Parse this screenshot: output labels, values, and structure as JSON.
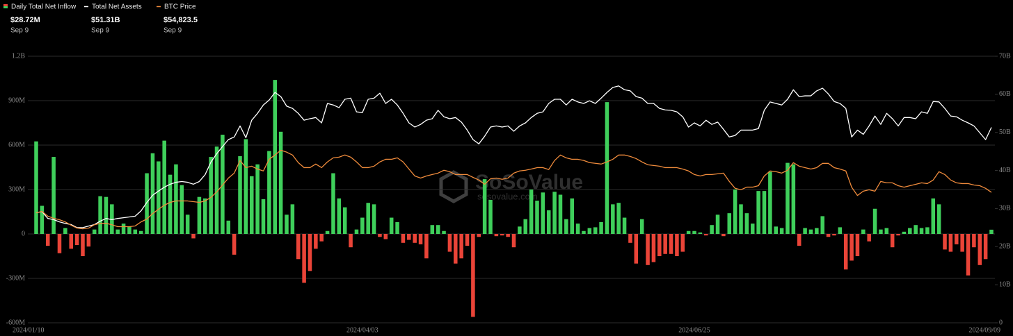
{
  "chart_data": {
    "type": "bar",
    "categories": [
      "2024/01/10",
      null,
      null,
      null,
      null,
      null,
      null,
      null,
      null,
      null,
      null,
      null,
      null,
      null,
      null,
      null,
      null,
      null,
      null,
      null,
      null,
      null,
      null,
      null,
      null,
      null,
      null,
      null,
      null,
      null,
      null,
      null,
      null,
      null,
      null,
      null,
      null,
      null,
      null,
      null,
      null,
      null,
      null,
      null,
      null,
      null,
      null,
      null,
      null,
      null,
      null,
      null,
      null,
      null,
      null,
      null,
      "2024/04/03",
      null,
      null,
      null,
      null,
      null,
      null,
      null,
      null,
      null,
      null,
      null,
      null,
      null,
      null,
      null,
      null,
      null,
      null,
      null,
      null,
      null,
      null,
      null,
      null,
      null,
      null,
      null,
      null,
      null,
      null,
      null,
      null,
      null,
      null,
      null,
      null,
      null,
      null,
      null,
      null,
      null,
      null,
      null,
      null,
      null,
      null,
      null,
      null,
      null,
      null,
      null,
      null,
      null,
      null,
      null,
      null,
      "2024/06/25",
      null,
      null,
      null,
      null,
      null,
      null,
      null,
      null,
      null,
      null,
      null,
      null,
      null,
      null,
      null,
      null,
      null,
      null,
      null,
      null,
      null,
      null,
      null,
      null,
      null,
      null,
      null,
      null,
      null,
      null,
      null,
      null,
      null,
      null,
      null,
      null,
      null,
      null,
      null,
      null,
      null,
      null,
      null,
      null,
      null,
      null,
      null,
      null,
      null,
      null,
      "2024/09/09"
    ],
    "series": [
      {
        "name": "Daily Total Net Inflow",
        "type": "bar",
        "color": "#3fcf5b",
        "negative_color": "#ea4438",
        "latest_label": "$28.72M",
        "latest_date": "Sep 9",
        "values": [
          625,
          190,
          -80,
          520,
          -130,
          40,
          -100,
          -75,
          -150,
          -85,
          30,
          255,
          250,
          200,
          30,
          70,
          50,
          30,
          20,
          410,
          545,
          490,
          630,
          400,
          470,
          330,
          130,
          -30,
          250,
          240,
          520,
          590,
          670,
          90,
          -140,
          525,
          640,
          390,
          470,
          235,
          560,
          1040,
          690,
          130,
          200,
          -170,
          -330,
          -250,
          -100,
          -50,
          20,
          410,
          240,
          180,
          -90,
          30,
          110,
          210,
          200,
          -20,
          -35,
          110,
          80,
          -60,
          -40,
          -60,
          -70,
          -165,
          60,
          60,
          20,
          -120,
          -200,
          -165,
          -80,
          -560,
          -20,
          370,
          230,
          -15,
          -10,
          -20,
          -90,
          50,
          100,
          300,
          225,
          280,
          160,
          285,
          265,
          100,
          240,
          70,
          20,
          40,
          45,
          80,
          890,
          200,
          210,
          110,
          -60,
          -200,
          100,
          -210,
          -190,
          -150,
          -135,
          -135,
          -150,
          -120,
          20,
          20,
          10,
          -10,
          60,
          130,
          -15,
          140,
          300,
          200,
          140,
          70,
          290,
          290,
          420,
          50,
          40,
          480,
          470,
          -80,
          40,
          30,
          40,
          120,
          -20,
          -10,
          45,
          -240,
          -180,
          -150,
          30,
          -50,
          170,
          30,
          40,
          -90,
          -10,
          15,
          40,
          60,
          40,
          45,
          240,
          200,
          -105,
          -120,
          -70,
          -120,
          -280,
          -90,
          -210,
          -170,
          28.72
        ]
      },
      {
        "name": "Total Net Assets",
        "type": "line",
        "axis": "y2",
        "color": "#ffffff",
        "latest_label": "$51.31B",
        "latest_date": "Sep 9",
        "values": [
          28.9,
          29.2,
          27.4,
          27.1,
          26.5,
          26.1,
          25.8,
          25.0,
          25.0,
          25.4,
          25.8,
          26.7,
          27.4,
          27.1,
          27.4,
          27.6,
          27.8,
          28.0,
          29.4,
          31.6,
          33.5,
          34.6,
          35.6,
          36.4,
          36.9,
          37.1,
          36.9,
          36.4,
          37.1,
          38.9,
          42.2,
          44.4,
          46.3,
          48.1,
          48.8,
          51.7,
          48.6,
          53.2,
          55.0,
          57.2,
          58.5,
          60.5,
          59.4,
          56.9,
          56.3,
          55.0,
          53.2,
          53.6,
          53.9,
          52.5,
          57.6,
          57.2,
          56.5,
          58.7,
          59.0,
          55.4,
          55.2,
          58.7,
          59.0,
          60.3,
          57.6,
          58.7,
          57.2,
          55.0,
          52.5,
          51.4,
          52.1,
          53.2,
          53.6,
          55.8,
          54.1,
          53.6,
          53.9,
          52.7,
          50.6,
          48.1,
          47.0,
          49.0,
          51.4,
          51.7,
          51.4,
          51.7,
          50.3,
          51.7,
          52.5,
          53.9,
          55.0,
          55.4,
          57.6,
          58.7,
          58.7,
          57.2,
          58.7,
          58.0,
          57.6,
          58.3,
          57.6,
          59.0,
          60.5,
          61.8,
          62.2,
          61.2,
          60.9,
          59.4,
          59.0,
          57.6,
          57.6,
          56.3,
          55.9,
          55.8,
          55.4,
          54.1,
          51.4,
          52.5,
          51.7,
          53.2,
          52.1,
          52.7,
          50.8,
          48.8,
          49.2,
          50.6,
          50.6,
          50.6,
          51.0,
          55.8,
          58.0,
          57.6,
          57.2,
          58.7,
          61.2,
          59.4,
          59.6,
          59.6,
          60.9,
          61.6,
          60.1,
          58.1,
          57.6,
          56.3,
          48.8,
          50.6,
          49.5,
          51.7,
          54.3,
          52.1,
          55.0,
          53.6,
          51.7,
          53.9,
          53.9,
          53.6,
          55.4,
          55.0,
          58.1,
          58.0,
          56.3,
          54.3,
          54.1,
          53.2,
          52.5,
          51.7,
          49.9,
          48.1,
          51.31
        ]
      },
      {
        "name": "BTC Price",
        "type": "line",
        "axis": "y3",
        "color": "#ef8b3c",
        "latest_label": "$54,823.5",
        "latest_date": "Sep 9",
        "values": [
          46200,
          46800,
          44800,
          43900,
          43300,
          42400,
          41000,
          39800,
          39500,
          39800,
          41200,
          41800,
          41800,
          41200,
          40400,
          40400,
          40400,
          40700,
          42400,
          43600,
          45900,
          47700,
          49400,
          50600,
          51200,
          51200,
          51200,
          50900,
          50600,
          51200,
          52700,
          55000,
          57900,
          60800,
          62900,
          68200,
          65200,
          65800,
          64600,
          63800,
          68700,
          70500,
          72500,
          71700,
          70500,
          67300,
          65200,
          65200,
          66700,
          65200,
          67600,
          69300,
          69600,
          70500,
          69600,
          67600,
          65200,
          65200,
          65800,
          67600,
          68700,
          68700,
          69300,
          67600,
          64600,
          61700,
          60800,
          61700,
          62300,
          62900,
          64100,
          63500,
          62300,
          62300,
          62300,
          61100,
          60000,
          58200,
          60500,
          60800,
          60300,
          60800,
          62900,
          63800,
          64100,
          64600,
          65200,
          65200,
          64400,
          68200,
          70500,
          69300,
          68700,
          68700,
          68200,
          67300,
          67000,
          66700,
          67600,
          68700,
          70500,
          70500,
          69900,
          69000,
          67600,
          66400,
          66100,
          65800,
          65200,
          65200,
          65200,
          64600,
          63800,
          62300,
          61700,
          62300,
          62300,
          62600,
          62900,
          59400,
          56500,
          55900,
          57000,
          57000,
          57600,
          61700,
          63800,
          63500,
          62900,
          64100,
          67300,
          65800,
          65200,
          64600,
          65200,
          67000,
          67000,
          65200,
          64600,
          63800,
          57000,
          53500,
          55300,
          55900,
          55300,
          59400,
          58800,
          58800,
          57600,
          57000,
          57600,
          58200,
          58800,
          58500,
          60000,
          63500,
          62300,
          60000,
          58800,
          58500,
          58500,
          57900,
          57600,
          56500,
          54823.5
        ]
      }
    ],
    "ylim": [
      -600,
      1200
    ],
    "yticks": [
      {
        "value": -600,
        "label": "-600M"
      },
      {
        "value": -300,
        "label": "-300M"
      },
      0,
      {
        "value": 300,
        "label": "300M"
      },
      {
        "value": 600,
        "label": "600M"
      },
      {
        "value": 900,
        "label": "900M"
      },
      {
        "value": 1200,
        "label": "1.2B"
      }
    ],
    "y2lim": [
      0,
      70
    ],
    "y2ticks": [
      {
        "value": 0,
        "label": "0"
      },
      {
        "value": 10,
        "label": "10B"
      },
      {
        "value": 20,
        "label": "20B"
      },
      {
        "value": 30,
        "label": "30B"
      },
      {
        "value": 40,
        "label": "40B"
      },
      {
        "value": 50,
        "label": "50B"
      },
      {
        "value": 60,
        "label": "60B"
      },
      {
        "value": 70,
        "label": "70B"
      }
    ],
    "y3lim": [
      0,
      112000
    ],
    "grid": true,
    "legend": "top-left",
    "watermark": {
      "name": "SoSoValue",
      "url": "sosovalue.com"
    }
  }
}
